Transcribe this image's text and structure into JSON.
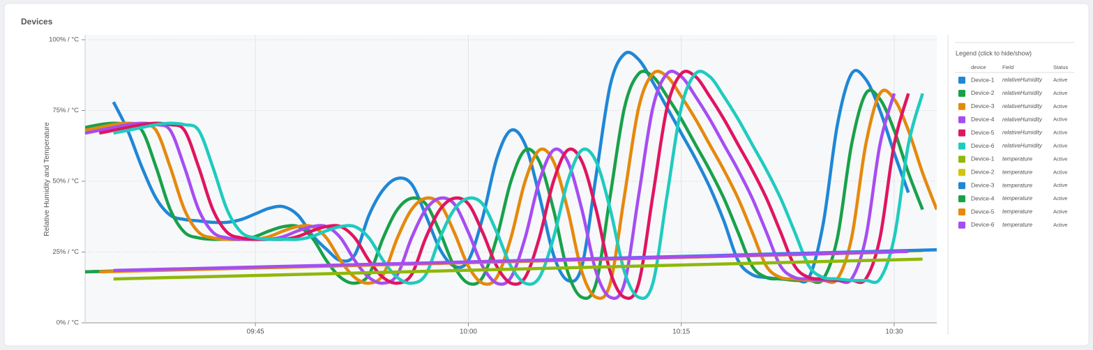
{
  "chart_data": {
    "type": "line",
    "title": "Devices",
    "ylabel": "Relative Humidity and Temperature",
    "legend_title": "Legend (click to hide/show)",
    "legend_columns": [
      "device",
      "Field",
      "Status"
    ],
    "legend_position": "right",
    "grid": true,
    "xlim": [
      "09:33",
      "10:33"
    ],
    "xticks": [
      "09:45",
      "10:00",
      "10:15",
      "10:30"
    ],
    "ylim": [
      0,
      100
    ],
    "yticks": [
      {
        "value": 0,
        "label": "0% / °C"
      },
      {
        "value": 25,
        "label": "25% / °C"
      },
      {
        "value": 50,
        "label": "50% / °C"
      },
      {
        "value": 75,
        "label": "75% / °C"
      },
      {
        "value": 100,
        "label": "100% / °C"
      }
    ],
    "x": [
      "09:33",
      "09:34",
      "09:35",
      "09:36",
      "09:37",
      "09:38",
      "09:39",
      "09:40",
      "09:41",
      "09:42",
      "09:43",
      "09:44",
      "09:45",
      "09:46",
      "09:47",
      "09:48",
      "09:49",
      "09:50",
      "09:51",
      "09:52",
      "09:53",
      "09:54",
      "09:55",
      "09:56",
      "09:57",
      "09:58",
      "09:59",
      "10:00",
      "10:01",
      "10:02",
      "10:03",
      "10:04",
      "10:05",
      "10:06",
      "10:07",
      "10:08",
      "10:09",
      "10:10",
      "10:11",
      "10:12",
      "10:13",
      "10:14",
      "10:15",
      "10:16",
      "10:17",
      "10:18",
      "10:19",
      "10:20",
      "10:21",
      "10:22",
      "10:23",
      "10:24",
      "10:25",
      "10:26",
      "10:27",
      "10:28",
      "10:29",
      "10:30",
      "10:31",
      "10:32",
      "10:33"
    ],
    "series": [
      {
        "name": "Device-1",
        "field": "relativeHumidity",
        "status": "Active",
        "color": "#1f87d6",
        "values": [
          null,
          null,
          78,
          68,
          55,
          44,
          38,
          36.5,
          36,
          35.5,
          35.5,
          36.5,
          38.5,
          40.5,
          41,
          38,
          31,
          26,
          22,
          24,
          38,
          47,
          51,
          49,
          38,
          26,
          20,
          22,
          37,
          58,
          68,
          63,
          45,
          24,
          15,
          20,
          52,
          84,
          95,
          93,
          85,
          76,
          67,
          58,
          48,
          36,
          22,
          17,
          16,
          15.5,
          15.5,
          16,
          35,
          70,
          88,
          86,
          75,
          60,
          46,
          null,
          null
        ]
      },
      {
        "name": "Device-2",
        "field": "relativeHumidity",
        "status": "Active",
        "color": "#19a14a",
        "values": [
          69,
          70,
          70.5,
          70,
          68,
          55,
          40,
          32,
          30,
          29.5,
          29.5,
          29.5,
          30.5,
          32.5,
          34,
          34,
          30,
          22,
          16,
          14,
          17,
          30,
          40,
          44,
          42,
          32,
          20,
          14,
          16,
          30,
          50,
          61,
          57,
          40,
          18,
          9,
          14,
          45,
          76,
          88,
          87,
          80,
          72,
          63,
          54,
          44,
          32,
          20,
          16,
          15.5,
          15,
          15,
          15.5,
          30,
          63,
          81,
          79,
          68,
          53,
          40,
          null
        ]
      },
      {
        "name": "Device-3",
        "field": "relativeHumidity",
        "status": "Active",
        "color": "#e5890c",
        "values": [
          68,
          69,
          70,
          70.5,
          70,
          68,
          55,
          40,
          32,
          30,
          29.5,
          29.5,
          29.5,
          30.5,
          32.5,
          34,
          34,
          30,
          22,
          16,
          14,
          17,
          30,
          40,
          44,
          42,
          32,
          20,
          14,
          16,
          30,
          50,
          61,
          57,
          40,
          18,
          9,
          14,
          45,
          76,
          88,
          87,
          80,
          72,
          63,
          54,
          44,
          32,
          20,
          16,
          15.5,
          15,
          15,
          15.5,
          30,
          63,
          81,
          79,
          68,
          53,
          40
        ]
      },
      {
        "name": "Device-4",
        "field": "relativeHumidity",
        "status": "Active",
        "color": "#a64df2",
        "values": [
          67,
          68,
          69,
          70,
          70.5,
          70,
          68,
          55,
          40,
          32,
          30,
          29.5,
          29.5,
          29.5,
          30.5,
          32.5,
          34,
          34,
          30,
          22,
          16,
          14,
          17,
          30,
          40,
          44,
          42,
          32,
          20,
          14,
          16,
          30,
          50,
          61,
          57,
          40,
          18,
          9,
          14,
          45,
          76,
          88,
          87,
          80,
          72,
          63,
          54,
          44,
          32,
          20,
          16,
          15.5,
          15,
          15,
          15.5,
          30,
          63,
          81,
          null,
          null,
          null
        ]
      },
      {
        "name": "Device-5",
        "field": "relativeHumidity",
        "status": "Active",
        "color": "#e01560",
        "values": [
          null,
          67,
          68,
          69,
          70,
          70.5,
          70,
          68,
          55,
          40,
          32,
          30,
          29.5,
          29.5,
          29.5,
          30.5,
          32.5,
          34,
          34,
          30,
          22,
          16,
          14,
          17,
          30,
          40,
          44,
          42,
          32,
          20,
          14,
          16,
          30,
          50,
          61,
          57,
          40,
          18,
          9,
          14,
          45,
          76,
          88,
          87,
          80,
          72,
          63,
          54,
          44,
          32,
          20,
          16,
          15.5,
          15,
          15,
          15.5,
          30,
          63,
          81,
          null,
          null
        ]
      },
      {
        "name": "Device-6",
        "field": "relativeHumidity",
        "status": "Active",
        "color": "#1fcbbf",
        "values": [
          null,
          null,
          67,
          68,
          69,
          70,
          70.5,
          70,
          68,
          55,
          40,
          32,
          30,
          29.5,
          29.5,
          29.5,
          30.5,
          32.5,
          34,
          34,
          30,
          22,
          16,
          14,
          17,
          30,
          40,
          44,
          42,
          32,
          20,
          14,
          16,
          30,
          50,
          61,
          57,
          40,
          18,
          9,
          14,
          45,
          76,
          88,
          87,
          80,
          72,
          63,
          54,
          44,
          32,
          20,
          16,
          15.5,
          15,
          15,
          15.5,
          30,
          63,
          81,
          null
        ]
      },
      {
        "name": "Device-1",
        "field": "temperature",
        "status": "Active",
        "color": "#8fb80a",
        "x": [
          "09:35",
          "10:32"
        ],
        "values": [
          15.5,
          22.5
        ]
      },
      {
        "name": "Device-2",
        "field": "temperature",
        "status": "Active",
        "color": "#d4c30c",
        "x": [
          "09:33",
          "10:32"
        ],
        "values": [
          18,
          25.5
        ]
      },
      {
        "name": "Device-3",
        "field": "temperature",
        "status": "Active",
        "color": "#1f87d6",
        "x": [
          "09:33",
          "10:33"
        ],
        "values": [
          18,
          25.8
        ]
      },
      {
        "name": "Device-4",
        "field": "temperature",
        "status": "Active",
        "color": "#19a14a",
        "x": [
          "09:33",
          "10:30"
        ],
        "values": [
          18,
          25
        ]
      },
      {
        "name": "Device-5",
        "field": "temperature",
        "status": "Active",
        "color": "#e5890c",
        "x": [
          "09:34",
          "10:30"
        ],
        "values": [
          18,
          25
        ]
      },
      {
        "name": "Device-6",
        "field": "temperature",
        "status": "Active",
        "color": "#a64df2",
        "x": [
          "09:35",
          "10:31"
        ],
        "values": [
          18.5,
          25.2
        ]
      }
    ]
  }
}
